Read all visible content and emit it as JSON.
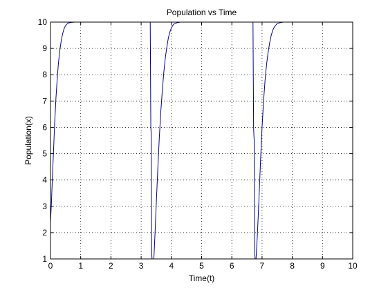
{
  "chart_data": {
    "type": "line",
    "title": "Population vs Time",
    "xlabel": "Time(t)",
    "ylabel": "Population(x)",
    "xlim": [
      0,
      10
    ],
    "ylim": [
      1,
      10
    ],
    "xticks": [
      0,
      1,
      2,
      3,
      4,
      5,
      6,
      7,
      8,
      9,
      10
    ],
    "yticks": [
      1,
      2,
      3,
      4,
      5,
      6,
      7,
      8,
      9,
      10
    ],
    "grid": true,
    "grid_style": "dotted",
    "line_color": "#00008b",
    "series": [
      {
        "segments": [
          {
            "x": [
              0.0,
              0.03,
              0.06,
              0.1,
              0.14,
              0.18,
              0.22,
              0.26,
              0.3,
              0.35,
              0.4,
              0.45,
              0.5,
              0.55,
              0.6,
              0.7,
              0.8,
              1.0
            ],
            "y": [
              2.4,
              3.1,
              4.0,
              5.1,
              6.2,
              7.1,
              7.8,
              8.4,
              8.85,
              9.25,
              9.55,
              9.75,
              9.87,
              9.93,
              9.97,
              9.99,
              10.0,
              10.0
            ]
          },
          {
            "x": [
              3.3,
              3.31,
              3.32,
              3.33,
              3.34,
              3.35,
              3.36
            ],
            "y": [
              10.0,
              8.0,
              6.0,
              5.8,
              3.0,
              1.2,
              1.0
            ]
          },
          {
            "x": [
              3.42,
              3.46,
              3.5,
              3.55,
              3.6,
              3.65,
              3.7,
              3.75,
              3.8,
              3.85,
              3.9,
              3.95,
              4.0,
              4.05,
              4.1,
              4.2,
              4.3,
              4.5
            ],
            "y": [
              1.0,
              2.0,
              3.1,
              4.4,
              5.6,
              6.6,
              7.4,
              8.1,
              8.65,
              9.05,
              9.4,
              9.62,
              9.78,
              9.88,
              9.94,
              9.98,
              10.0,
              10.0
            ]
          },
          {
            "x": [
              6.7,
              6.71,
              6.72,
              6.73,
              6.74,
              6.75,
              6.76,
              6.77
            ],
            "y": [
              10.0,
              8.0,
              6.0,
              5.7,
              5.5,
              3.0,
              1.2,
              1.0
            ]
          },
          {
            "x": [
              6.8,
              6.84,
              6.88,
              6.92,
              6.96,
              7.0,
              7.05,
              7.1,
              7.15,
              7.2,
              7.25,
              7.3,
              7.35,
              7.4,
              7.45,
              7.5,
              7.6,
              7.7,
              7.9
            ],
            "y": [
              1.0,
              1.8,
              2.8,
              3.9,
              5.0,
              6.0,
              7.0,
              7.8,
              8.4,
              8.85,
              9.2,
              9.48,
              9.68,
              9.8,
              9.88,
              9.94,
              9.98,
              10.0,
              10.0
            ]
          }
        ]
      }
    ]
  }
}
